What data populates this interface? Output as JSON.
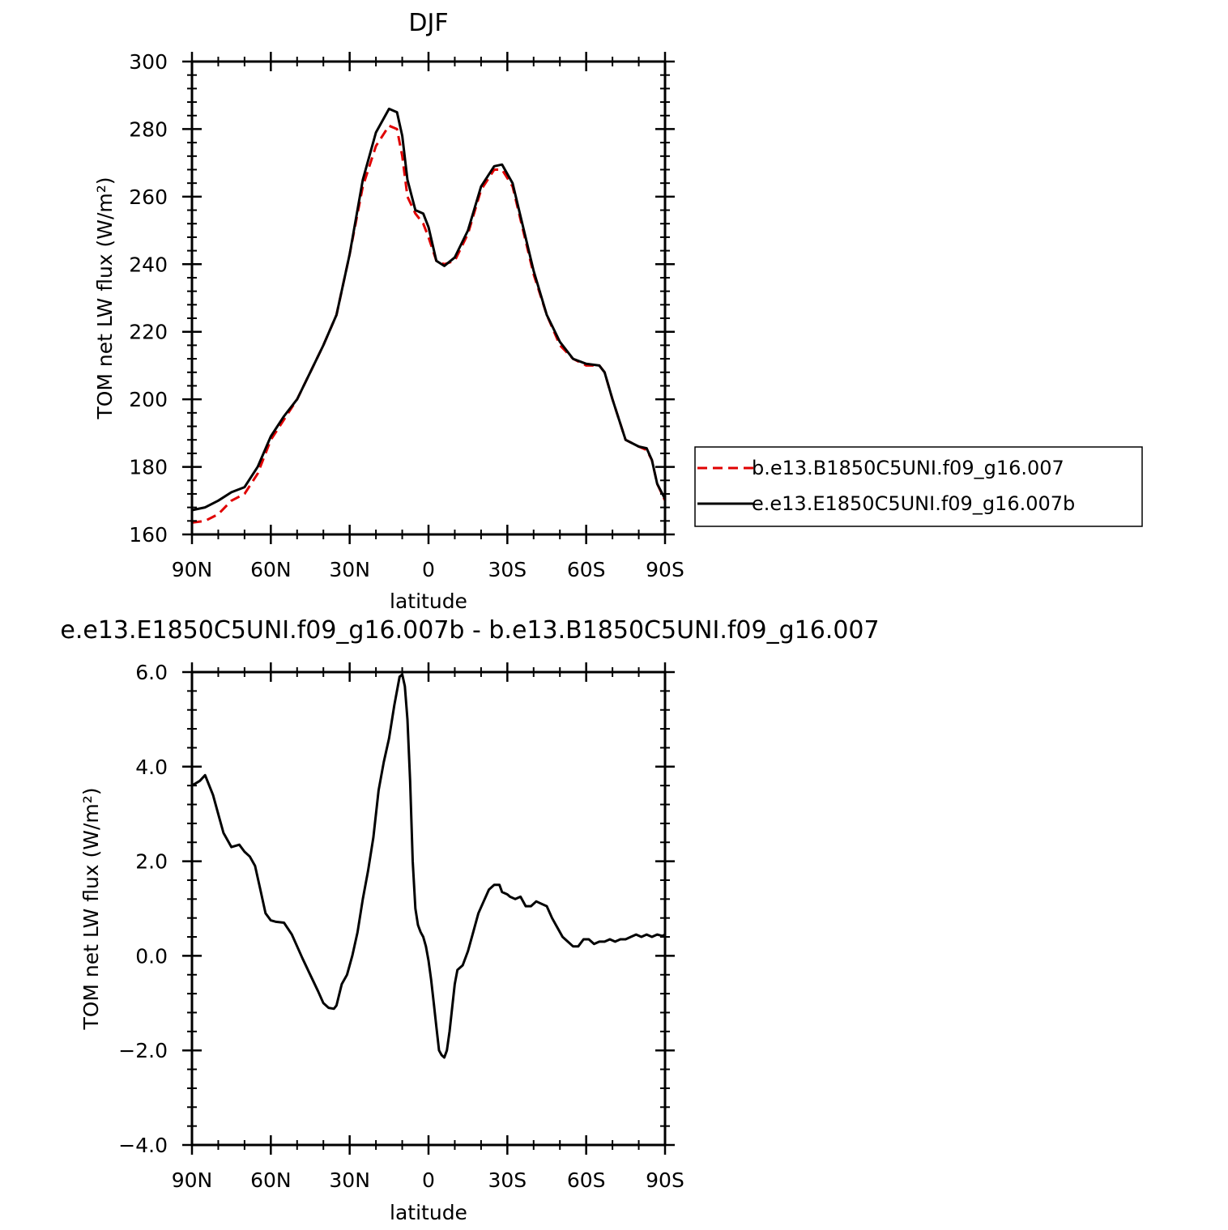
{
  "chart_data": [
    {
      "type": "line",
      "title": "DJF",
      "xlabel": "latitude",
      "ylabel": "TOM net LW flux (W/m²)",
      "xlim": [
        90,
        -90
      ],
      "ylim": [
        160,
        300
      ],
      "xticks": [
        90,
        60,
        30,
        0,
        -30,
        -60,
        -90
      ],
      "xtick_labels": [
        "90N",
        "60N",
        "30N",
        "0",
        "30S",
        "60S",
        "90S"
      ],
      "yticks": [
        160,
        180,
        200,
        220,
        240,
        260,
        280,
        300
      ],
      "ytick_labels": [
        "160",
        "180",
        "200",
        "220",
        "240",
        "260",
        "280",
        "300"
      ],
      "legend_position": "right",
      "series": [
        {
          "name": "b.e13.B1850C5UNI.f09_g16.007",
          "color": "#e00000",
          "dash": "dashed",
          "x": [
            90,
            85,
            80,
            75,
            70,
            65,
            60,
            55,
            50,
            45,
            40,
            35,
            30,
            25,
            20,
            15,
            12,
            10,
            8,
            5,
            2,
            0,
            -3,
            -6,
            -10,
            -15,
            -20,
            -25,
            -28,
            -32,
            -36,
            -40,
            -45,
            -50,
            -55,
            -60,
            -65,
            -67,
            -70,
            -75,
            -80,
            -83,
            -85,
            -87,
            -90
          ],
          "y": [
            163.5,
            164,
            166,
            170,
            172,
            178,
            188,
            194,
            200,
            208,
            216,
            225,
            243,
            263,
            275,
            281,
            280,
            272,
            260,
            255,
            252,
            248,
            241,
            240,
            241,
            249,
            262,
            268,
            268,
            263,
            250,
            237,
            225,
            216,
            212,
            210,
            210,
            208,
            200,
            188,
            186,
            185,
            182,
            175,
            170
          ]
        },
        {
          "name": "e.e13.E1850C5UNI.f09_g16.007b",
          "color": "#000000",
          "dash": "solid",
          "x": [
            90,
            85,
            80,
            75,
            70,
            65,
            60,
            55,
            50,
            45,
            40,
            35,
            30,
            25,
            20,
            15,
            12,
            10,
            8,
            5,
            2,
            0,
            -3,
            -6,
            -10,
            -15,
            -20,
            -25,
            -28,
            -32,
            -36,
            -40,
            -45,
            -50,
            -55,
            -60,
            -65,
            -67,
            -70,
            -75,
            -80,
            -83,
            -85,
            -87,
            -90
          ],
          "y": [
            167.2,
            168,
            170,
            172.5,
            174,
            180,
            189,
            195,
            200,
            208,
            216,
            225,
            243,
            265,
            279,
            286,
            285,
            278,
            265,
            256,
            255,
            251,
            241,
            239.5,
            242,
            250,
            263,
            269,
            269.5,
            264,
            251,
            238,
            225,
            217,
            212,
            210.5,
            210,
            208,
            200,
            188,
            186,
            185.5,
            182,
            175,
            170.5
          ]
        }
      ]
    },
    {
      "type": "line",
      "title": "e.e13.E1850C5UNI.f09_g16.007b - b.e13.B1850C5UNI.f09_g16.007",
      "xlabel": "latitude",
      "ylabel": "TOM net LW flux (W/m²)",
      "xlim": [
        90,
        -90
      ],
      "ylim": [
        -4,
        6
      ],
      "xticks": [
        90,
        60,
        30,
        0,
        -30,
        -60,
        -90
      ],
      "xtick_labels": [
        "90N",
        "60N",
        "30N",
        "0",
        "30S",
        "60S",
        "90S"
      ],
      "yticks": [
        -4,
        -2,
        0,
        2,
        4,
        6
      ],
      "ytick_labels": [
        "−4.0",
        "−2.0",
        "0.0",
        "2.0",
        "4.0",
        "6.0"
      ],
      "series": [
        {
          "name": "",
          "color": "#000000",
          "dash": "solid",
          "x": [
            90,
            87,
            85,
            82,
            80,
            78,
            75,
            72,
            70,
            68,
            66,
            64,
            62,
            60,
            58,
            55,
            52,
            50,
            48,
            45,
            42,
            40,
            38,
            36,
            35,
            33,
            31,
            29,
            27,
            25,
            23,
            21,
            19,
            17,
            15,
            13,
            11,
            10,
            9,
            8,
            7,
            6,
            5,
            4,
            3,
            2,
            1,
            0,
            -1,
            -2,
            -3,
            -4,
            -5,
            -6,
            -7,
            -8,
            -9,
            -10,
            -11,
            -12,
            -13,
            -15,
            -17,
            -19,
            -21,
            -23,
            -25,
            -27,
            -28,
            -30,
            -31,
            -33,
            -35,
            -37,
            -39,
            -41,
            -43,
            -45,
            -47,
            -49,
            -51,
            -53,
            -55,
            -57,
            -59,
            -61,
            -63,
            -65,
            -67,
            -69,
            -71,
            -73,
            -75,
            -77,
            -79,
            -81,
            -83,
            -85,
            -87,
            -89,
            -90
          ],
          "y": [
            3.6,
            3.7,
            3.82,
            3.4,
            3.0,
            2.6,
            2.3,
            2.35,
            2.2,
            2.1,
            1.9,
            1.4,
            0.9,
            0.75,
            0.72,
            0.7,
            0.45,
            0.2,
            -0.05,
            -0.4,
            -0.75,
            -1.0,
            -1.1,
            -1.12,
            -1.05,
            -0.6,
            -0.4,
            0.0,
            0.5,
            1.2,
            1.8,
            2.5,
            3.5,
            4.1,
            4.6,
            5.3,
            5.9,
            5.95,
            5.7,
            5.0,
            3.7,
            2.0,
            1.0,
            0.65,
            0.5,
            0.4,
            0.2,
            -0.1,
            -0.5,
            -1.0,
            -1.5,
            -2.0,
            -2.1,
            -2.15,
            -2.0,
            -1.6,
            -1.1,
            -0.6,
            -0.3,
            -0.25,
            -0.2,
            0.1,
            0.5,
            0.9,
            1.15,
            1.4,
            1.5,
            1.5,
            1.35,
            1.3,
            1.25,
            1.2,
            1.25,
            1.05,
            1.05,
            1.15,
            1.1,
            1.05,
            0.8,
            0.6,
            0.4,
            0.3,
            0.2,
            0.2,
            0.35,
            0.35,
            0.25,
            0.3,
            0.3,
            0.35,
            0.3,
            0.35,
            0.35,
            0.4,
            0.45,
            0.4,
            0.45,
            0.4,
            0.45,
            0.42,
            0.45
          ]
        }
      ]
    }
  ]
}
